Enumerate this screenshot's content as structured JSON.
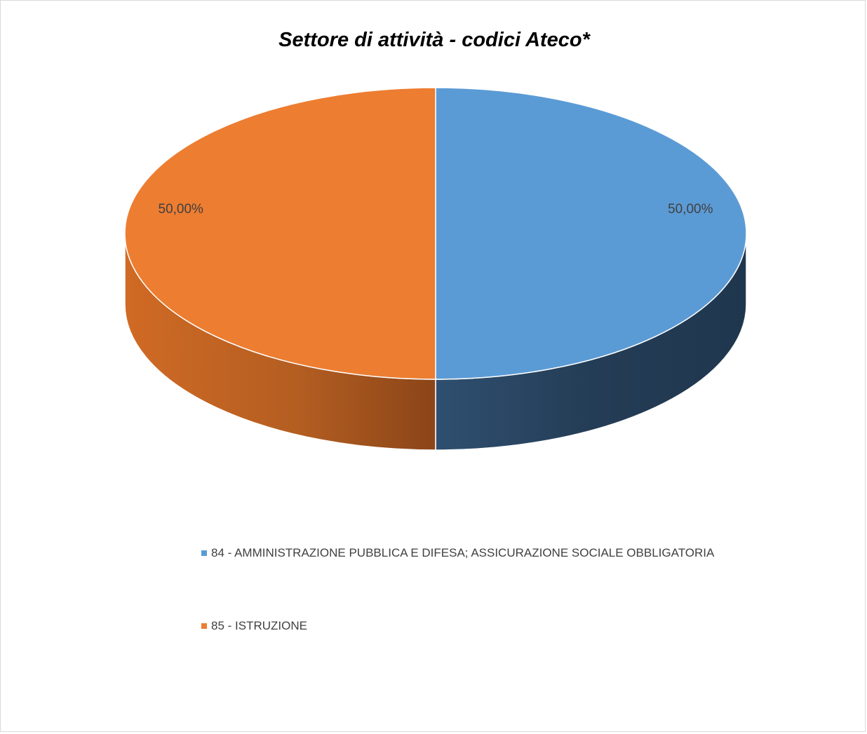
{
  "chart_data": {
    "type": "pie",
    "title": "Settore di attività - codici Ateco*",
    "categories": [
      "84 - AMMINISTRAZIONE PUBBLICA E DIFESA; ASSICURAZIONE SOCIALE OBBLIGATORIA",
      "85 - ISTRUZIONE"
    ],
    "values": [
      50.0,
      50.0
    ],
    "data_labels": [
      "50,00%",
      "50,00%"
    ],
    "colors": [
      "#5b9bd5",
      "#ed7d31"
    ],
    "legend_position": "bottom",
    "style": "3d"
  }
}
